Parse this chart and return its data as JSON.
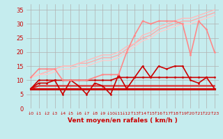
{
  "xlabel": "Vent moyen/en rafales ( km/h )",
  "xlim": [
    -0.5,
    23.5
  ],
  "ylim": [
    0,
    37
  ],
  "yticks": [
    0,
    5,
    10,
    15,
    20,
    25,
    30,
    35
  ],
  "xticks": [
    0,
    1,
    2,
    3,
    4,
    5,
    6,
    7,
    8,
    9,
    10,
    11,
    12,
    13,
    14,
    15,
    16,
    17,
    18,
    19,
    20,
    21,
    22,
    23
  ],
  "bg_color": "#c5ecee",
  "grid_color": "#b0b0b0",
  "series": [
    {
      "x": [
        0,
        1,
        2,
        3,
        4,
        5,
        6,
        7,
        8,
        9,
        10,
        11,
        12,
        13,
        14,
        15,
        16,
        17,
        18,
        19,
        20,
        21,
        22,
        23
      ],
      "y": [
        7,
        7,
        7,
        7,
        7,
        7,
        7,
        7,
        7,
        7,
        7,
        7,
        7,
        7,
        7,
        7,
        7,
        7,
        7,
        7,
        7,
        7,
        7,
        7
      ],
      "color": "#cc0000",
      "lw": 2.2,
      "marker": null,
      "ms": 0,
      "zorder": 3
    },
    {
      "x": [
        0,
        1,
        2,
        3,
        4,
        5,
        6,
        7,
        8,
        9,
        10,
        11,
        12,
        13,
        14,
        15,
        16,
        17,
        18,
        19,
        20,
        21,
        22,
        23
      ],
      "y": [
        7,
        8,
        8,
        8,
        8,
        8,
        8,
        8,
        8,
        8,
        8,
        8,
        8,
        8,
        8,
        8,
        8,
        8,
        8,
        8,
        8,
        8,
        8,
        8
      ],
      "color": "#dd2222",
      "lw": 1.5,
      "marker": null,
      "ms": 0,
      "zorder": 3
    },
    {
      "x": [
        0,
        1,
        2,
        3,
        4,
        5,
        6,
        7,
        8,
        9,
        10,
        11,
        12,
        13,
        14,
        15,
        16,
        17,
        18,
        19,
        20,
        21,
        22,
        23
      ],
      "y": [
        7,
        10,
        10,
        10,
        10,
        10,
        10,
        10,
        10,
        10,
        10,
        11,
        11,
        11,
        11,
        11,
        11,
        11,
        11,
        11,
        11,
        11,
        11,
        11
      ],
      "color": "#cc0000",
      "lw": 1.2,
      "marker": "o",
      "ms": 2,
      "zorder": 3
    },
    {
      "x": [
        0,
        1,
        2,
        3,
        4,
        5,
        6,
        7,
        8,
        9,
        10,
        11,
        12,
        13,
        14,
        15,
        16,
        17,
        18,
        19,
        20,
        21,
        22,
        23
      ],
      "y": [
        7,
        9,
        9,
        10,
        5,
        10,
        8,
        5,
        9,
        8,
        5,
        12,
        7,
        11,
        15,
        11,
        15,
        14,
        15,
        15,
        10,
        9,
        11,
        7
      ],
      "color": "#cc0000",
      "lw": 1.2,
      "marker": "o",
      "ms": 2,
      "zorder": 4
    },
    {
      "x": [
        0,
        1,
        2,
        3,
        4,
        5,
        6,
        7,
        8,
        9,
        10,
        11,
        12,
        13,
        14,
        15,
        16,
        17,
        18,
        19,
        20,
        21,
        22,
        23
      ],
      "y": [
        11,
        14,
        14,
        14,
        10,
        10,
        10,
        10,
        11,
        12,
        12,
        12,
        20,
        26,
        31,
        30,
        31,
        31,
        31,
        30,
        19,
        31,
        28,
        20
      ],
      "color": "#ff8888",
      "lw": 1.2,
      "marker": "o",
      "ms": 2,
      "zorder": 4
    },
    {
      "x": [
        0,
        1,
        2,
        3,
        4,
        5,
        6,
        7,
        8,
        9,
        10,
        11,
        12,
        13,
        14,
        15,
        16,
        17,
        18,
        19,
        20,
        21,
        22,
        23
      ],
      "y": [
        11,
        12,
        13,
        14,
        15,
        15,
        16,
        16,
        17,
        18,
        18,
        19,
        21,
        23,
        25,
        26,
        28,
        29,
        30,
        31,
        31,
        32,
        33,
        34
      ],
      "color": "#ffaaaa",
      "lw": 1.0,
      "marker": null,
      "ms": 0,
      "zorder": 2
    },
    {
      "x": [
        0,
        1,
        2,
        3,
        4,
        5,
        6,
        7,
        8,
        9,
        10,
        11,
        12,
        13,
        14,
        15,
        16,
        17,
        18,
        19,
        20,
        21,
        22,
        23
      ],
      "y": [
        11,
        12,
        13,
        14,
        15,
        15,
        16,
        17,
        18,
        19,
        19,
        20,
        22,
        23,
        26,
        27,
        29,
        30,
        31,
        32,
        32,
        33,
        34,
        35
      ],
      "color": "#ffbbbb",
      "lw": 1.0,
      "marker": null,
      "ms": 0,
      "zorder": 2
    },
    {
      "x": [
        0,
        1,
        2,
        3,
        4,
        5,
        6,
        7,
        8,
        9,
        10,
        11,
        12,
        13,
        14,
        15,
        16,
        17,
        18,
        19,
        20,
        21,
        22,
        23
      ],
      "y": [
        11,
        12,
        12,
        13,
        14,
        14,
        15,
        15,
        16,
        17,
        17,
        18,
        20,
        22,
        24,
        25,
        27,
        28,
        29,
        30,
        30,
        31,
        32,
        33
      ],
      "color": "#ffcccc",
      "lw": 1.0,
      "marker": null,
      "ms": 0,
      "zorder": 2
    }
  ],
  "arrow_labels_down": [
    0,
    1,
    2,
    3,
    4,
    5,
    6,
    7,
    8,
    9,
    10,
    11,
    12,
    13
  ],
  "arrow_labels_up": [
    13,
    14,
    15,
    16,
    17,
    18,
    19,
    20,
    21,
    22,
    23
  ],
  "tick_color": "#cc0000",
  "label_color": "#cc0000"
}
